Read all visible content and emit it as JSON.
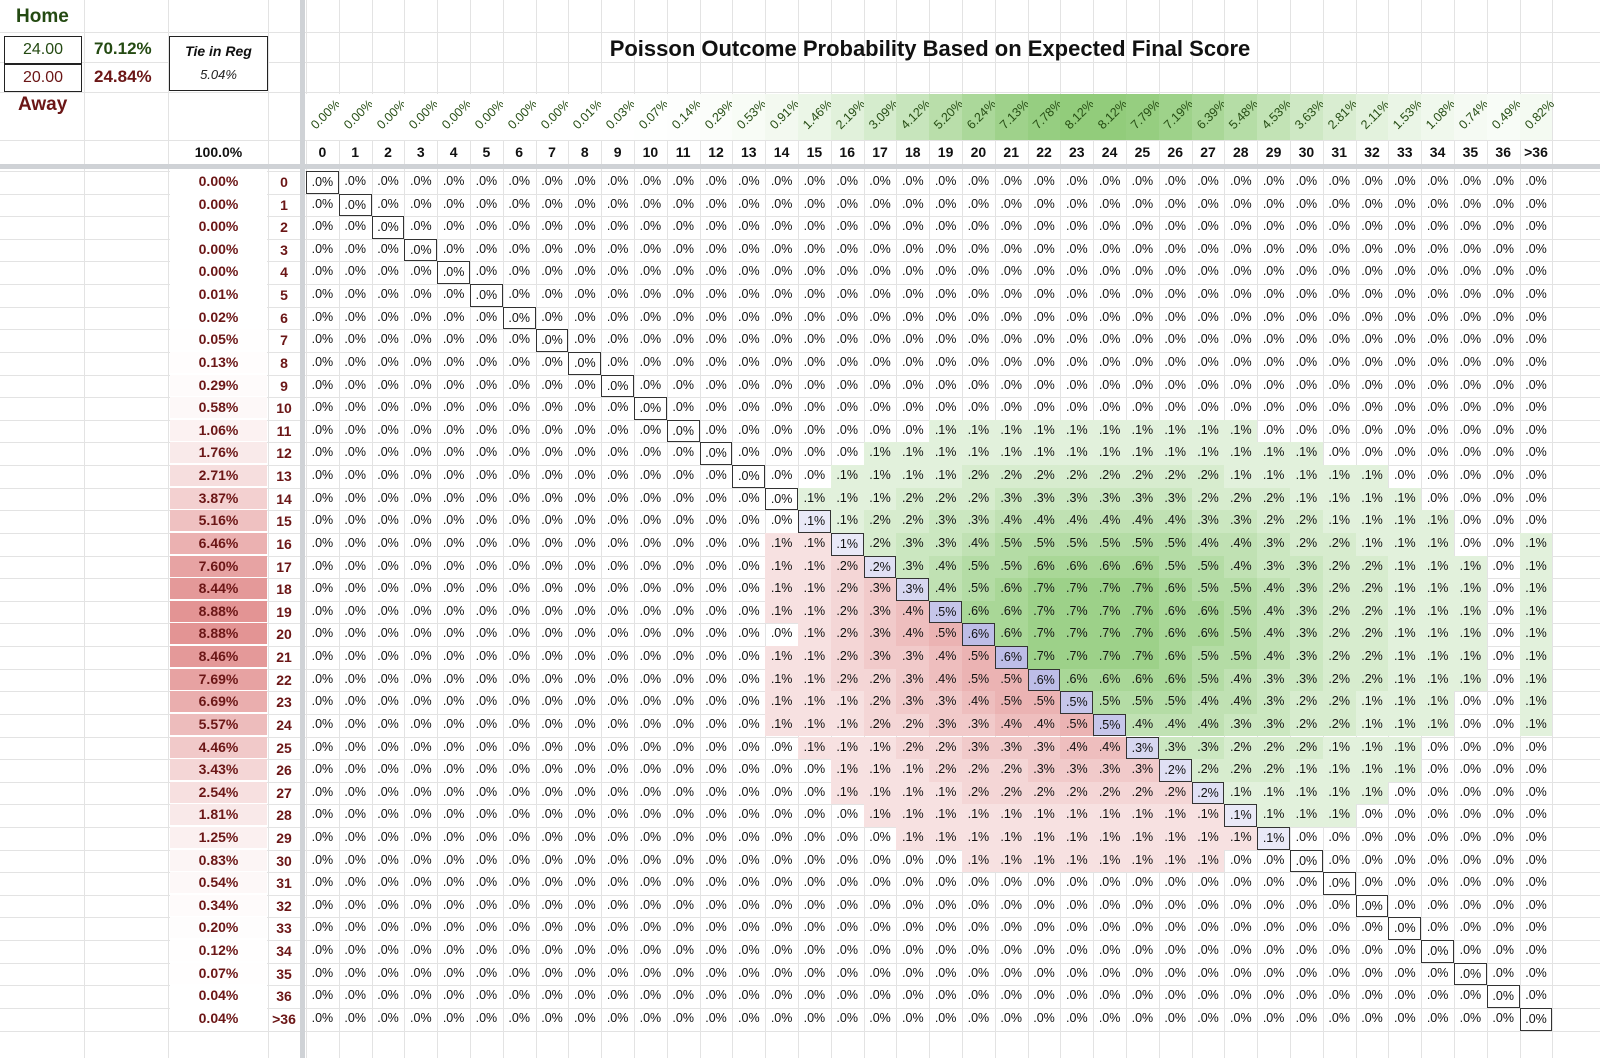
{
  "title": "Poisson Outcome Probability Based on Expected Final Score",
  "summary": {
    "home_label": "Home",
    "away_label": "Away",
    "home_expected": "24.00",
    "away_expected": "20.00",
    "home_win_pct": "70.12%",
    "away_win_pct": "24.84%",
    "tie_label": "Tie in Reg",
    "tie_pct": "5.04%",
    "total_pct": "100.0%"
  },
  "colors": {
    "home": "#244a12",
    "away": "#6b1616",
    "home_heat": "#6dbb4f",
    "away_heat": "#d86a6a",
    "diag_heat": "#8f8fd6"
  },
  "home_col_headers": [
    "0",
    "1",
    "2",
    "3",
    "4",
    "5",
    "6",
    "7",
    "8",
    "9",
    "10",
    "11",
    "12",
    "13",
    "14",
    "15",
    "16",
    "17",
    "18",
    "19",
    "20",
    "21",
    "22",
    "23",
    "24",
    "25",
    "26",
    "27",
    "28",
    "29",
    "30",
    "31",
    "32",
    "33",
    "34",
    "35",
    "36",
    ">36"
  ],
  "home_col_pcts": [
    "0.00%",
    "0.00%",
    "0.00%",
    "0.00%",
    "0.00%",
    "0.00%",
    "0.00%",
    "0.00%",
    "0.01%",
    "0.03%",
    "0.07%",
    "0.14%",
    "0.29%",
    "0.53%",
    "0.91%",
    "1.46%",
    "2.19%",
    "3.09%",
    "4.12%",
    "5.20%",
    "6.24%",
    "7.13%",
    "7.78%",
    "8.12%",
    "8.12%",
    "7.79%",
    "7.19%",
    "6.39%",
    "5.48%",
    "4.53%",
    "3.63%",
    "2.81%",
    "2.11%",
    "1.53%",
    "1.08%",
    "0.74%",
    "0.49%",
    "0.82%"
  ],
  "away_row_headers": [
    "0",
    "1",
    "2",
    "3",
    "4",
    "5",
    "6",
    "7",
    "8",
    "9",
    "10",
    "11",
    "12",
    "13",
    "14",
    "15",
    "16",
    "17",
    "18",
    "19",
    "20",
    "21",
    "22",
    "23",
    "24",
    "25",
    "26",
    "27",
    "28",
    "29",
    "30",
    "31",
    "32",
    "33",
    "34",
    "35",
    "36",
    ">36"
  ],
  "away_row_pcts": [
    "0.00%",
    "0.00%",
    "0.00%",
    "0.00%",
    "0.00%",
    "0.01%",
    "0.02%",
    "0.05%",
    "0.13%",
    "0.29%",
    "0.58%",
    "1.06%",
    "1.76%",
    "2.71%",
    "3.87%",
    "5.16%",
    "6.46%",
    "7.60%",
    "8.44%",
    "8.88%",
    "8.88%",
    "8.46%",
    "7.69%",
    "6.69%",
    "5.57%",
    "4.46%",
    "3.43%",
    "2.54%",
    "1.81%",
    "1.25%",
    "0.83%",
    "0.54%",
    "0.34%",
    "0.20%",
    "0.12%",
    "0.07%",
    "0.04%",
    "0.04%"
  ],
  "cells": [
    ".0%|.0%|.0%|.0%|.0%|.0%|.0%|.0%|.0%|.0%|.0%|.0%|.0%|.0%|.0%|.0%|.0%|.0%|.0%|.0%|.0%|.0%|.0%|.0%|.0%|.0%|.0%|.0%|.0%|.0%|.0%|.0%|.0%|.0%|.0%|.0%|.0%|.0%",
    ".0%|.0%|.0%|.0%|.0%|.0%|.0%|.0%|.0%|.0%|.0%|.0%|.0%|.0%|.0%|.0%|.0%|.0%|.0%|.0%|.0%|.0%|.0%|.0%|.0%|.0%|.0%|.0%|.0%|.0%|.0%|.0%|.0%|.0%|.0%|.0%|.0%|.0%",
    ".0%|.0%|.0%|.0%|.0%|.0%|.0%|.0%|.0%|.0%|.0%|.0%|.0%|.0%|.0%|.0%|.0%|.0%|.0%|.0%|.0%|.0%|.0%|.0%|.0%|.0%|.0%|.0%|.0%|.0%|.0%|.0%|.0%|.0%|.0%|.0%|.0%|.0%",
    ".0%|.0%|.0%|.0%|.0%|.0%|.0%|.0%|.0%|.0%|.0%|.0%|.0%|.0%|.0%|.0%|.0%|.0%|.0%|.0%|.0%|.0%|.0%|.0%|.0%|.0%|.0%|.0%|.0%|.0%|.0%|.0%|.0%|.0%|.0%|.0%|.0%|.0%",
    ".0%|.0%|.0%|.0%|.0%|.0%|.0%|.0%|.0%|.0%|.0%|.0%|.0%|.0%|.0%|.0%|.0%|.0%|.0%|.0%|.0%|.0%|.0%|.0%|.0%|.0%|.0%|.0%|.0%|.0%|.0%|.0%|.0%|.0%|.0%|.0%|.0%|.0%",
    ".0%|.0%|.0%|.0%|.0%|.0%|.0%|.0%|.0%|.0%|.0%|.0%|.0%|.0%|.0%|.0%|.0%|.0%|.0%|.0%|.0%|.0%|.0%|.0%|.0%|.0%|.0%|.0%|.0%|.0%|.0%|.0%|.0%|.0%|.0%|.0%|.0%|.0%",
    ".0%|.0%|.0%|.0%|.0%|.0%|.0%|.0%|.0%|.0%|.0%|.0%|.0%|.0%|.0%|.0%|.0%|.0%|.0%|.0%|.0%|.0%|.0%|.0%|.0%|.0%|.0%|.0%|.0%|.0%|.0%|.0%|.0%|.0%|.0%|.0%|.0%|.0%",
    ".0%|.0%|.0%|.0%|.0%|.0%|.0%|.0%|.0%|.0%|.0%|.0%|.0%|.0%|.0%|.0%|.0%|.0%|.0%|.0%|.0%|.0%|.0%|.0%|.0%|.0%|.0%|.0%|.0%|.0%|.0%|.0%|.0%|.0%|.0%|.0%|.0%|.0%",
    ".0%|.0%|.0%|.0%|.0%|.0%|.0%|.0%|.0%|.0%|.0%|.0%|.0%|.0%|.0%|.0%|.0%|.0%|.0%|.0%|.0%|.0%|.0%|.0%|.0%|.0%|.0%|.0%|.0%|.0%|.0%|.0%|.0%|.0%|.0%|.0%|.0%|.0%",
    ".0%|.0%|.0%|.0%|.0%|.0%|.0%|.0%|.0%|.0%|.0%|.0%|.0%|.0%|.0%|.0%|.0%|.0%|.0%|.0%|.0%|.0%|.0%|.0%|.0%|.0%|.0%|.0%|.0%|.0%|.0%|.0%|.0%|.0%|.0%|.0%|.0%|.0%",
    ".0%|.0%|.0%|.0%|.0%|.0%|.0%|.0%|.0%|.0%|.0%|.0%|.0%|.0%|.0%|.0%|.0%|.0%|.0%|.0%|.0%|.0%|.0%|.0%|.0%|.0%|.0%|.0%|.0%|.0%|.0%|.0%|.0%|.0%|.0%|.0%|.0%|.0%",
    ".0%|.0%|.0%|.0%|.0%|.0%|.0%|.0%|.0%|.0%|.0%|.0%|.0%|.0%|.0%|.0%|.0%|.0%|.0%|.1%|.1%|.1%|.1%|.1%|.1%|.1%|.1%|.1%|.1%|.0%|.0%|.0%|.0%|.0%|.0%|.0%|.0%|.0%",
    ".0%|.0%|.0%|.0%|.0%|.0%|.0%|.0%|.0%|.0%|.0%|.0%|.0%|.0%|.0%|.0%|.0%|.1%|.1%|.1%|.1%|.1%|.1%|.1%|.1%|.1%|.1%|.1%|.1%|.1%|.1%|.0%|.0%|.0%|.0%|.0%|.0%|.0%",
    ".0%|.0%|.0%|.0%|.0%|.0%|.0%|.0%|.0%|.0%|.0%|.0%|.0%|.0%|.0%|.0%|.1%|.1%|.1%|.1%|.2%|.2%|.2%|.2%|.2%|.2%|.2%|.2%|.1%|.1%|.1%|.1%|.1%|.0%|.0%|.0%|.0%|.0%",
    ".0%|.0%|.0%|.0%|.0%|.0%|.0%|.0%|.0%|.0%|.0%|.0%|.0%|.0%|.0%|.1%|.1%|.1%|.2%|.2%|.2%|.3%|.3%|.3%|.3%|.3%|.3%|.2%|.2%|.2%|.1%|.1%|.1%|.1%|.0%|.0%|.0%|.0%",
    ".0%|.0%|.0%|.0%|.0%|.0%|.0%|.0%|.0%|.0%|.0%|.0%|.0%|.0%|.0%|.1%|.1%|.2%|.2%|.3%|.3%|.4%|.4%|.4%|.4%|.4%|.4%|.3%|.3%|.2%|.2%|.1%|.1%|.1%|.1%|.0%|.0%|.0%",
    ".0%|.0%|.0%|.0%|.0%|.0%|.0%|.0%|.0%|.0%|.0%|.0%|.0%|.0%|.1%|.1%|.1%|.2%|.3%|.3%|.4%|.5%|.5%|.5%|.5%|.5%|.5%|.4%|.4%|.3%|.2%|.2%|.1%|.1%|.1%|.0%|.0%|.1%",
    ".0%|.0%|.0%|.0%|.0%|.0%|.0%|.0%|.0%|.0%|.0%|.0%|.0%|.0%|.1%|.1%|.2%|.2%|.3%|.4%|.5%|.5%|.6%|.6%|.6%|.6%|.5%|.5%|.4%|.3%|.3%|.2%|.2%|.1%|.1%|.1%|.0%|.1%",
    ".0%|.0%|.0%|.0%|.0%|.0%|.0%|.0%|.0%|.0%|.0%|.0%|.0%|.0%|.1%|.1%|.2%|.3%|.3%|.4%|.5%|.6%|.7%|.7%|.7%|.7%|.6%|.5%|.5%|.4%|.3%|.2%|.2%|.1%|.1%|.1%|.0%|.1%",
    ".0%|.0%|.0%|.0%|.0%|.0%|.0%|.0%|.0%|.0%|.0%|.0%|.0%|.0%|.1%|.1%|.2%|.3%|.4%|.5%|.6%|.6%|.7%|.7%|.7%|.7%|.6%|.6%|.5%|.4%|.3%|.2%|.2%|.1%|.1%|.1%|.0%|.1%",
    ".0%|.0%|.0%|.0%|.0%|.0%|.0%|.0%|.0%|.0%|.0%|.0%|.0%|.0%|.0%|.1%|.2%|.3%|.4%|.5%|.6%|.6%|.7%|.7%|.7%|.7%|.6%|.6%|.5%|.4%|.3%|.2%|.2%|.1%|.1%|.1%|.0%|.1%",
    ".0%|.0%|.0%|.0%|.0%|.0%|.0%|.0%|.0%|.0%|.0%|.0%|.0%|.0%|.1%|.1%|.2%|.3%|.3%|.4%|.5%|.6%|.7%|.7%|.7%|.7%|.6%|.5%|.5%|.4%|.3%|.2%|.2%|.1%|.1%|.1%|.0%|.1%",
    ".0%|.0%|.0%|.0%|.0%|.0%|.0%|.0%|.0%|.0%|.0%|.0%|.0%|.0%|.1%|.1%|.2%|.2%|.3%|.4%|.5%|.5%|.6%|.6%|.6%|.6%|.6%|.5%|.4%|.3%|.3%|.2%|.2%|.1%|.1%|.1%|.0%|.1%",
    ".0%|.0%|.0%|.0%|.0%|.0%|.0%|.0%|.0%|.0%|.0%|.0%|.0%|.0%|.1%|.1%|.1%|.2%|.3%|.3%|.4%|.5%|.5%|.5%|.5%|.5%|.5%|.4%|.4%|.3%|.2%|.2%|.1%|.1%|.1%|.0%|.0%|.1%",
    ".0%|.0%|.0%|.0%|.0%|.0%|.0%|.0%|.0%|.0%|.0%|.0%|.0%|.0%|.1%|.1%|.1%|.2%|.2%|.3%|.3%|.4%|.4%|.5%|.5%|.4%|.4%|.4%|.3%|.3%|.2%|.2%|.1%|.1%|.1%|.0%|.0%|.1%",
    ".0%|.0%|.0%|.0%|.0%|.0%|.0%|.0%|.0%|.0%|.0%|.0%|.0%|.0%|.0%|.1%|.1%|.1%|.2%|.2%|.3%|.3%|.3%|.4%|.4%|.3%|.3%|.3%|.2%|.2%|.2%|.1%|.1%|.1%|.0%|.0%|.0%|.0%",
    ".0%|.0%|.0%|.0%|.0%|.0%|.0%|.0%|.0%|.0%|.0%|.0%|.0%|.0%|.0%|.0%|.1%|.1%|.1%|.2%|.2%|.2%|.3%|.3%|.3%|.3%|.2%|.2%|.2%|.2%|.1%|.1%|.1%|.1%|.0%|.0%|.0%|.0%",
    ".0%|.0%|.0%|.0%|.0%|.0%|.0%|.0%|.0%|.0%|.0%|.0%|.0%|.0%|.0%|.0%|.1%|.1%|.1%|.1%|.2%|.2%|.2%|.2%|.2%|.2%|.2%|.2%|.1%|.1%|.1%|.1%|.1%|.0%|.0%|.0%|.0%|.0%",
    ".0%|.0%|.0%|.0%|.0%|.0%|.0%|.0%|.0%|.0%|.0%|.0%|.0%|.0%|.0%|.0%|.0%|.1%|.1%|.1%|.1%|.1%|.1%|.1%|.1%|.1%|.1%|.1%|.1%|.1%|.1%|.1%|.0%|.0%|.0%|.0%|.0%|.0%",
    ".0%|.0%|.0%|.0%|.0%|.0%|.0%|.0%|.0%|.0%|.0%|.0%|.0%|.0%|.0%|.0%|.0%|.0%|.1%|.1%|.1%|.1%|.1%|.1%|.1%|.1%|.1%|.1%|.1%|.1%|.0%|.0%|.0%|.0%|.0%|.0%|.0%|.0%",
    ".0%|.0%|.0%|.0%|.0%|.0%|.0%|.0%|.0%|.0%|.0%|.0%|.0%|.0%|.0%|.0%|.0%|.0%|.0%|.0%|.1%|.1%|.1%|.1%|.1%|.1%|.1%|.1%|.0%|.0%|.0%|.0%|.0%|.0%|.0%|.0%|.0%|.0%",
    ".0%|.0%|.0%|.0%|.0%|.0%|.0%|.0%|.0%|.0%|.0%|.0%|.0%|.0%|.0%|.0%|.0%|.0%|.0%|.0%|.0%|.0%|.0%|.0%|.0%|.0%|.0%|.0%|.0%|.0%|.0%|.0%|.0%|.0%|.0%|.0%|.0%|.0%",
    ".0%|.0%|.0%|.0%|.0%|.0%|.0%|.0%|.0%|.0%|.0%|.0%|.0%|.0%|.0%|.0%|.0%|.0%|.0%|.0%|.0%|.0%|.0%|.0%|.0%|.0%|.0%|.0%|.0%|.0%|.0%|.0%|.0%|.0%|.0%|.0%|.0%|.0%",
    ".0%|.0%|.0%|.0%|.0%|.0%|.0%|.0%|.0%|.0%|.0%|.0%|.0%|.0%|.0%|.0%|.0%|.0%|.0%|.0%|.0%|.0%|.0%|.0%|.0%|.0%|.0%|.0%|.0%|.0%|.0%|.0%|.0%|.0%|.0%|.0%|.0%|.0%",
    ".0%|.0%|.0%|.0%|.0%|.0%|.0%|.0%|.0%|.0%|.0%|.0%|.0%|.0%|.0%|.0%|.0%|.0%|.0%|.0%|.0%|.0%|.0%|.0%|.0%|.0%|.0%|.0%|.0%|.0%|.0%|.0%|.0%|.0%|.0%|.0%|.0%|.0%",
    ".0%|.0%|.0%|.0%|.0%|.0%|.0%|.0%|.0%|.0%|.0%|.0%|.0%|.0%|.0%|.0%|.0%|.0%|.0%|.0%|.0%|.0%|.0%|.0%|.0%|.0%|.0%|.0%|.0%|.0%|.0%|.0%|.0%|.0%|.0%|.0%|.0%|.0%",
    ".0%|.0%|.0%|.0%|.0%|.0%|.0%|.0%|.0%|.0%|.0%|.0%|.0%|.0%|.0%|.0%|.0%|.0%|.0%|.0%|.0%|.0%|.0%|.0%|.0%|.0%|.0%|.0%|.0%|.0%|.0%|.0%|.0%|.0%|.0%|.0%|.0%|.0%",
    ".0%|.0%|.0%|.0%|.0%|.0%|.0%|.0%|.0%|.0%|.0%|.0%|.0%|.0%|.0%|.0%|.0%|.0%|.0%|.0%|.0%|.0%|.0%|.0%|.0%|.0%|.0%|.0%|.0%|.0%|.0%|.0%|.0%|.0%|.0%|.0%|.0%|.0%"
  ]
}
